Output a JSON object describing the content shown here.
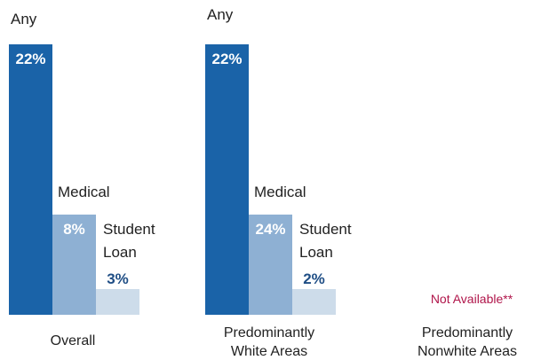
{
  "chart_data": {
    "type": "bar",
    "categories": [
      "Any",
      "Medical",
      "Student Loan"
    ],
    "groups": [
      "Overall",
      "Predominantly White Areas",
      "Predominantly Nonwhite Areas"
    ],
    "series": [
      {
        "group": "Overall",
        "values": [
          22,
          8,
          3
        ],
        "value_labels": [
          "22%",
          "8%",
          "3%"
        ]
      },
      {
        "group": "Predominantly White Areas",
        "values": [
          22,
          24,
          2
        ],
        "value_labels": [
          "22%",
          "24%",
          "2%"
        ]
      },
      {
        "group": "Predominantly Nonwhite Areas",
        "values": [
          null,
          null,
          null
        ],
        "value_labels": [
          null,
          null,
          null
        ]
      }
    ],
    "not_available_text": "Not Available**",
    "colors": {
      "Any": "#1a63a8",
      "Medical": "#8eb0d3",
      "Student Loan": "#cddcea",
      "label_dark": "#1f4e85",
      "not_available": "#b0154a"
    },
    "legend": "none",
    "grid": false
  }
}
